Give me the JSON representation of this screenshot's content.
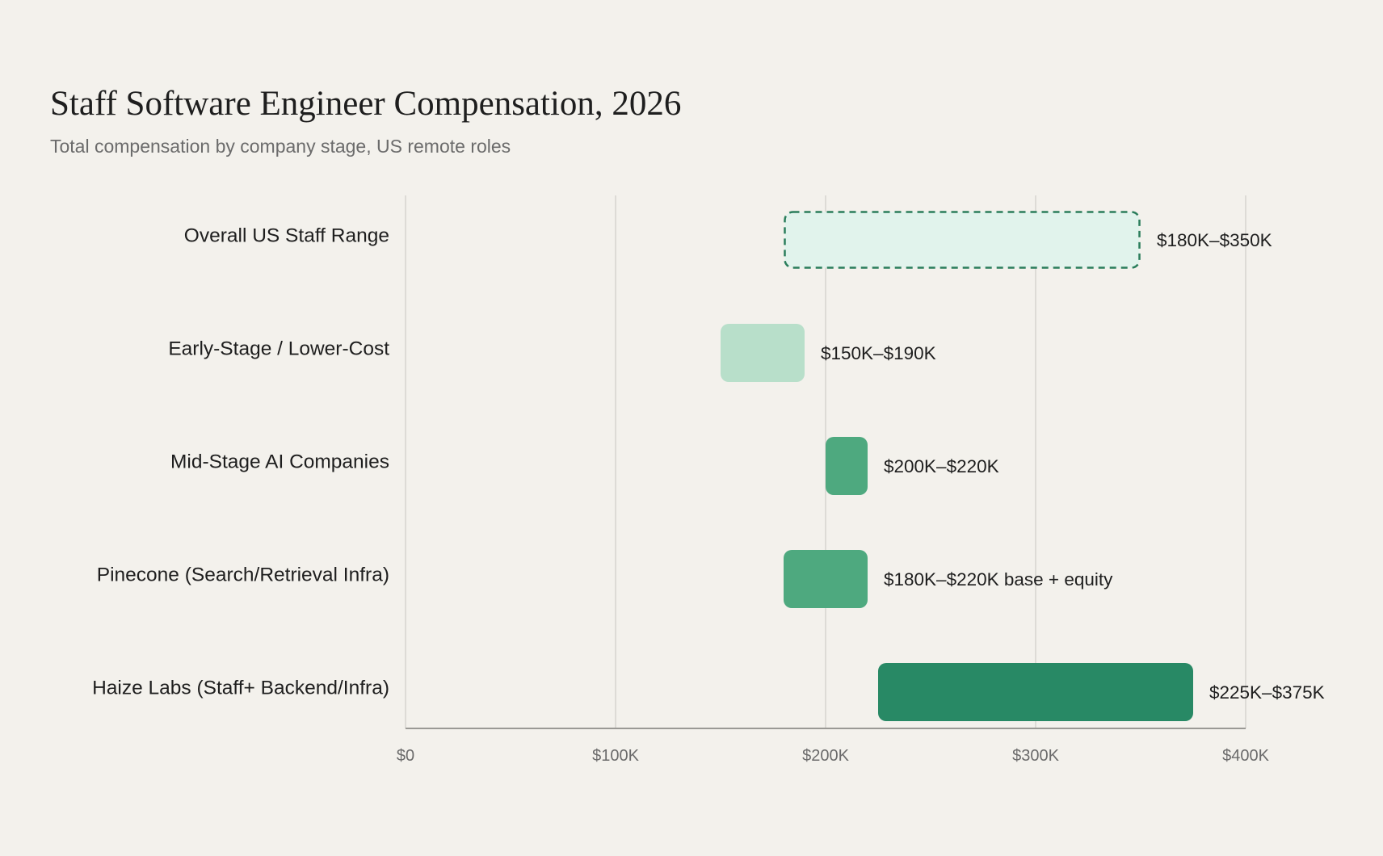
{
  "chart_data": {
    "type": "bar",
    "orientation": "horizontal",
    "range_bars": true,
    "title": "Staff Software Engineer Compensation, 2026",
    "subtitle": "Total compensation by company stage, US remote roles",
    "xlabel": "",
    "ylabel": "",
    "xlim": [
      0,
      400000
    ],
    "grid": "vertical",
    "legend": "none",
    "x_ticks": [
      {
        "value": 0,
        "label": "$0"
      },
      {
        "value": 100000,
        "label": "$100K"
      },
      {
        "value": 200000,
        "label": "$200K"
      },
      {
        "value": 300000,
        "label": "$300K"
      },
      {
        "value": 400000,
        "label": "$400K"
      }
    ],
    "bars": [
      {
        "category": "Overall US Staff Range",
        "low": 180000,
        "high": 350000,
        "label": "$180K–$350K",
        "color": "#e1f3ec",
        "border": "#2a7d5b",
        "dashed": true
      },
      {
        "category": "Early-Stage / Lower-Cost",
        "low": 150000,
        "high": 190000,
        "label": "$150K–$190K",
        "color": "#b8dfca"
      },
      {
        "category": "Mid-Stage AI Companies",
        "low": 200000,
        "high": 220000,
        "label": "$200K–$220K",
        "color": "#4ea97f"
      },
      {
        "category": "Pinecone (Search/Retrieval Infra)",
        "low": 180000,
        "high": 220000,
        "label": "$180K–$220K base + equity",
        "color": "#4ea97f"
      },
      {
        "category": "Haize Labs (Staff+ Backend/Infra)",
        "low": 225000,
        "high": 375000,
        "label": "$225K–$375K",
        "color": "#288965"
      }
    ]
  },
  "colors": {
    "background": "#f3f1ec",
    "grid": "#d6d4cf",
    "axis": "#9a9995"
  }
}
